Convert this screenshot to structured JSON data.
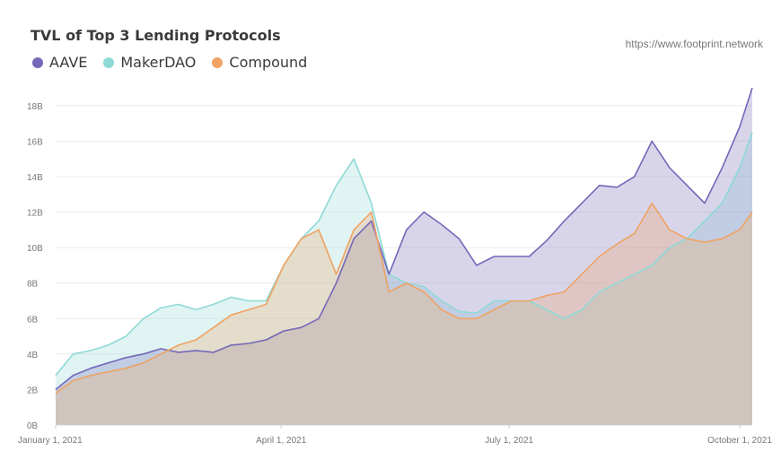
{
  "header": {
    "title": "TVL of Top 3 Lending Protocols",
    "source": "https://www.footprint.network"
  },
  "colors": {
    "AAVE": "#7468b8",
    "MakerDAO": "#8fd9d6",
    "Compound": "#f0a262",
    "gray_base": "#cfc4be"
  },
  "chart_data": {
    "type": "area",
    "title": "TVL of Top 3 Lending Protocols",
    "xlabel": "",
    "ylabel": "",
    "ylim": [
      0,
      19
    ],
    "xlim": [
      "2021-01-01",
      "2021-10-06"
    ],
    "y_ticks": [
      "0B",
      "2B",
      "4B",
      "6B",
      "8B",
      "10B",
      "12B",
      "14B",
      "16B",
      "18B"
    ],
    "x_ticks": [
      {
        "date": "2021-01-01",
        "label": "January 1, 2021"
      },
      {
        "date": "2021-04-01",
        "label": "April 1, 2021"
      },
      {
        "date": "2021-07-01",
        "label": "July 1, 2021"
      },
      {
        "date": "2021-10-01",
        "label": "October 1, 2021"
      }
    ],
    "legend_position": "top-left",
    "grid": true,
    "x": [
      "2021-01-01",
      "2021-01-08",
      "2021-01-15",
      "2021-01-22",
      "2021-01-29",
      "2021-02-05",
      "2021-02-12",
      "2021-02-19",
      "2021-02-26",
      "2021-03-05",
      "2021-03-12",
      "2021-03-19",
      "2021-03-26",
      "2021-04-02",
      "2021-04-09",
      "2021-04-16",
      "2021-04-23",
      "2021-04-30",
      "2021-05-07",
      "2021-05-14",
      "2021-05-21",
      "2021-05-28",
      "2021-06-04",
      "2021-06-11",
      "2021-06-18",
      "2021-06-25",
      "2021-07-02",
      "2021-07-09",
      "2021-07-16",
      "2021-07-23",
      "2021-07-30",
      "2021-08-06",
      "2021-08-13",
      "2021-08-20",
      "2021-08-27",
      "2021-09-03",
      "2021-09-10",
      "2021-09-17",
      "2021-09-24",
      "2021-10-01",
      "2021-10-06"
    ],
    "series": [
      {
        "name": "AAVE",
        "values": [
          2.0,
          2.8,
          3.2,
          3.5,
          3.8,
          4.0,
          4.3,
          4.1,
          4.2,
          4.1,
          4.5,
          4.6,
          4.8,
          5.3,
          5.5,
          6.0,
          8.0,
          10.5,
          11.5,
          8.5,
          11.0,
          12.0,
          11.3,
          10.5,
          9.0,
          9.5,
          9.5,
          9.5,
          10.4,
          11.5,
          12.5,
          13.5,
          13.4,
          14.0,
          16.0,
          14.5,
          13.5,
          12.5,
          14.5,
          16.8,
          19.0
        ]
      },
      {
        "name": "MakerDAO",
        "values": [
          2.8,
          4.0,
          4.2,
          4.5,
          5.0,
          6.0,
          6.6,
          6.8,
          6.5,
          6.8,
          7.2,
          7.0,
          7.0,
          9.0,
          10.5,
          11.5,
          13.5,
          15.0,
          12.5,
          8.5,
          8.0,
          7.8,
          7.0,
          6.4,
          6.3,
          7.0,
          7.0,
          7.0,
          6.5,
          6.0,
          6.5,
          7.5,
          8.0,
          8.5,
          9.0,
          10.0,
          10.5,
          11.5,
          12.5,
          14.5,
          16.5
        ]
      },
      {
        "name": "Compound",
        "values": [
          1.8,
          2.5,
          2.8,
          3.0,
          3.2,
          3.5,
          4.0,
          4.5,
          4.8,
          5.5,
          6.2,
          6.5,
          6.8,
          9.0,
          10.5,
          11.0,
          8.5,
          11.0,
          12.0,
          7.5,
          8.0,
          7.5,
          6.5,
          6.0,
          6.0,
          6.5,
          7.0,
          7.0,
          7.3,
          7.5,
          8.5,
          9.5,
          10.2,
          10.8,
          12.5,
          11.0,
          10.5,
          10.3,
          10.5,
          11.0,
          12.0
        ]
      }
    ]
  }
}
